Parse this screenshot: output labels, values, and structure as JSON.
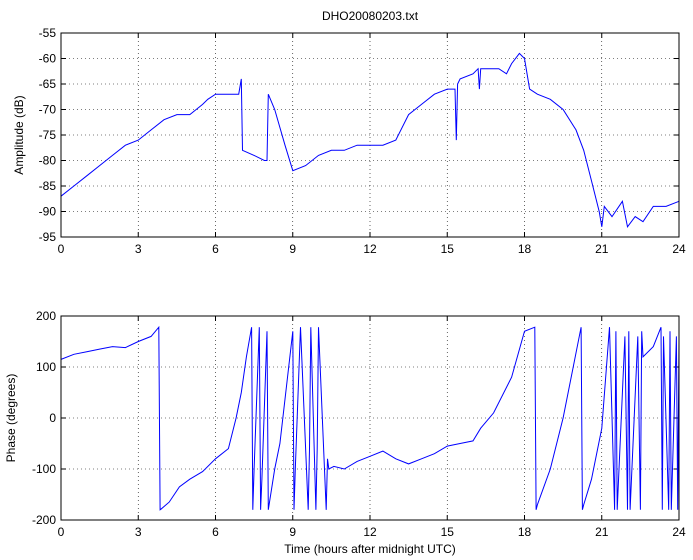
{
  "chart_data": [
    {
      "type": "line",
      "title": "DHO20080203.txt",
      "xlabel": "",
      "ylabel": "Amplitude (dB)",
      "xlim": [
        0,
        24
      ],
      "ylim": [
        -95,
        -55
      ],
      "x_ticks": [
        0,
        3,
        6,
        9,
        12,
        15,
        18,
        21,
        24
      ],
      "y_ticks": [
        -95,
        -90,
        -85,
        -80,
        -75,
        -70,
        -65,
        -60,
        -55
      ],
      "grid": true,
      "line_color": "#0000ff",
      "series": [
        {
          "x": [
            0,
            0.5,
            1,
            1.5,
            2,
            2.5,
            3,
            3.5,
            4,
            4.5,
            5,
            5.5,
            5.7,
            6,
            6.5,
            6.9,
            7,
            7.05,
            7.5,
            7.9,
            8,
            8.05,
            8.3,
            8.7,
            9,
            9.5,
            10,
            10.5,
            11,
            11.5,
            12,
            12.5,
            13,
            13.5,
            14,
            14.5,
            15,
            15.3,
            15.35,
            15.4,
            15.5,
            16,
            16.2,
            16.25,
            16.3,
            16.5,
            17,
            17.3,
            17.5,
            17.8,
            18,
            18.2,
            18.5,
            19,
            19.5,
            20,
            20.3,
            20.6,
            20.9,
            21,
            21.1,
            21.4,
            21.8,
            22,
            22.3,
            22.6,
            23,
            23.5,
            24
          ],
          "y": [
            -87,
            -85,
            -83,
            -81,
            -79,
            -77,
            -76,
            -74,
            -72,
            -71,
            -71,
            -69,
            -68,
            -67,
            -67,
            -67,
            -64,
            -78,
            -79,
            -80,
            -80,
            -67,
            -70,
            -77,
            -82,
            -81,
            -79,
            -78,
            -78,
            -77,
            -77,
            -77,
            -76,
            -71,
            -69,
            -67,
            -66,
            -66,
            -76,
            -65,
            -64,
            -63,
            -62,
            -66,
            -62,
            -62,
            -62,
            -63,
            -61,
            -59,
            -60,
            -66,
            -67,
            -68,
            -70,
            -74,
            -78,
            -84,
            -90,
            -93,
            -89,
            -91,
            -88,
            -93,
            -91,
            -92,
            -89,
            -89,
            -88
          ]
        }
      ]
    },
    {
      "type": "line",
      "title": "",
      "xlabel": "Time (hours after midnight UTC)",
      "ylabel": "Phase (degrees)",
      "xlim": [
        0,
        24
      ],
      "ylim": [
        -200,
        200
      ],
      "x_ticks": [
        0,
        3,
        6,
        9,
        12,
        15,
        18,
        21,
        24
      ],
      "y_ticks": [
        -200,
        -100,
        0,
        100,
        200
      ],
      "grid": true,
      "line_color": "#0000ff",
      "series": [
        {
          "x": [
            0,
            0.5,
            1,
            1.5,
            2,
            2.5,
            3,
            3.5,
            3.8,
            3.85,
            3.9,
            4.2,
            4.6,
            5,
            5.5,
            6,
            6.5,
            6.8,
            7,
            7.2,
            7.4,
            7.45,
            7.5,
            7.7,
            7.75,
            7.8,
            8,
            8.05,
            8.3,
            8.5,
            9,
            9.05,
            9.1,
            9.3,
            9.6,
            9.65,
            9.7,
            9.9,
            9.95,
            10,
            10.3,
            10.35,
            10.4,
            10.6,
            11,
            11.5,
            12,
            12.5,
            13,
            13.5,
            14,
            14.5,
            15,
            15.5,
            16,
            16.3,
            16.8,
            17.5,
            18,
            18.4,
            18.45,
            18.5,
            19,
            19.5,
            20.2,
            20.25,
            20.3,
            20.6,
            21,
            21.3,
            21.5,
            21.55,
            21.6,
            21.9,
            22.0,
            22.05,
            22.1,
            22.4,
            22.5,
            22.55,
            22.6,
            23,
            23.3,
            23.35,
            23.4,
            23.6,
            23.65,
            23.7,
            23.9,
            23.95,
            24
          ],
          "y": [
            115,
            125,
            130,
            135,
            140,
            138,
            150,
            160,
            178,
            -180,
            -178,
            -165,
            -135,
            -120,
            -105,
            -80,
            -60,
            0,
            50,
            120,
            178,
            -180,
            -100,
            178,
            -180,
            -120,
            170,
            -180,
            -100,
            -50,
            170,
            -180,
            -100,
            178,
            -180,
            -60,
            178,
            -180,
            -60,
            178,
            -180,
            -80,
            -100,
            -95,
            -100,
            -85,
            -75,
            -65,
            -80,
            -90,
            -80,
            -70,
            -55,
            -50,
            -45,
            -20,
            10,
            80,
            170,
            178,
            -180,
            -170,
            -100,
            0,
            178,
            -180,
            -170,
            -120,
            -20,
            178,
            -180,
            170,
            -180,
            160,
            -180,
            170,
            -180,
            160,
            -180,
            170,
            120,
            140,
            178,
            -180,
            160,
            -180,
            170,
            -180,
            160,
            -180,
            150
          ]
        }
      ]
    }
  ]
}
